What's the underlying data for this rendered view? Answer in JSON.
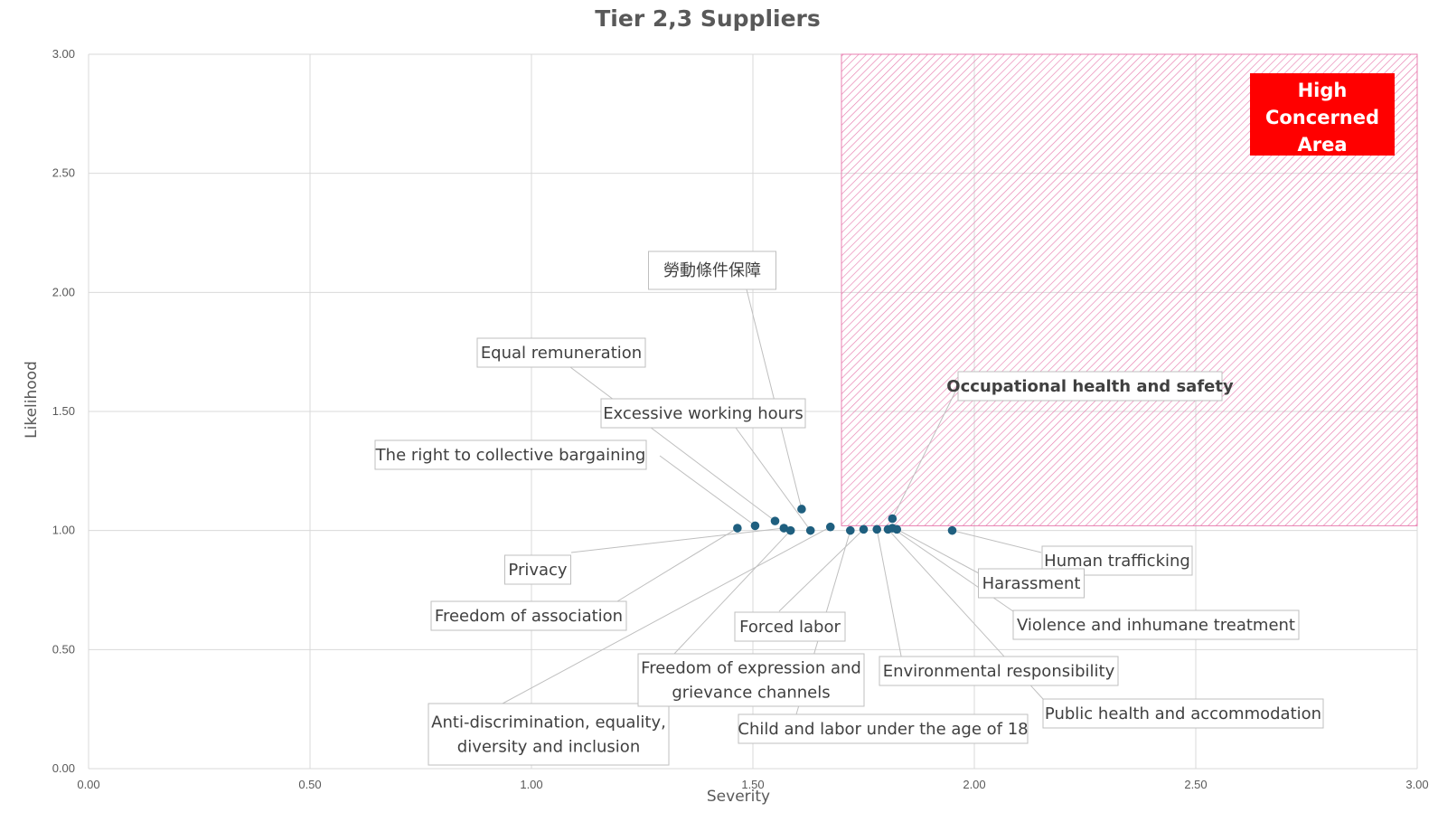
{
  "chart_data": {
    "type": "scatter",
    "title": "Tier 2,3 Suppliers",
    "xlabel": "Severity",
    "ylabel": "Likelihood",
    "xlim": [
      0,
      3
    ],
    "ylim": [
      0,
      3
    ],
    "xticks": [
      "0.00",
      "0.50",
      "1.00",
      "1.50",
      "2.00",
      "2.50",
      "3.00"
    ],
    "yticks": [
      "0.00",
      "0.50",
      "1.00",
      "1.50",
      "2.00",
      "2.50",
      "3.00"
    ],
    "grid": true,
    "marker_color": "#1f5f7f",
    "high_concern_area": {
      "label_lines": [
        "High",
        "Concerned",
        "Area"
      ],
      "x_range": [
        1.7,
        3.0
      ],
      "y_range": [
        1.02,
        3.0
      ],
      "hatch_color": "#e87fb0",
      "label_bg": "#ff0000"
    },
    "points": [
      {
        "label": "勞動條件保障",
        "x": 1.61,
        "y": 1.09
      },
      {
        "label": "Equal remuneration",
        "x": 1.55,
        "y": 1.04
      },
      {
        "label": "Excessive working hours",
        "x": 1.63,
        "y": 1.0
      },
      {
        "label": "The right to collective bargaining",
        "x": 1.505,
        "y": 1.02
      },
      {
        "label": "Privacy",
        "x": 1.57,
        "y": 1.01
      },
      {
        "label": "Freedom of association",
        "x": 1.465,
        "y": 1.01
      },
      {
        "label": "Anti-discrimination, equality, diversity and inclusion",
        "x": 1.675,
        "y": 1.015
      },
      {
        "label": "Freedom of expression and grievance channels",
        "x": 1.585,
        "y": 1.0
      },
      {
        "label": "Forced labor",
        "x": 1.75,
        "y": 1.005
      },
      {
        "label": "Child and labor under the age of 18",
        "x": 1.72,
        "y": 1.0
      },
      {
        "label": "Occupational health and safety",
        "x": 1.815,
        "y": 1.05
      },
      {
        "label": "Human trafficking",
        "x": 1.95,
        "y": 1.0
      },
      {
        "label": "Harassment",
        "x": 1.825,
        "y": 1.005
      },
      {
        "label": "Violence and inhumane treatment",
        "x": 1.815,
        "y": 1.01
      },
      {
        "label": "Environmental responsibility",
        "x": 1.78,
        "y": 1.005
      },
      {
        "label": "Public health and accommodation",
        "x": 1.805,
        "y": 1.005
      }
    ]
  }
}
